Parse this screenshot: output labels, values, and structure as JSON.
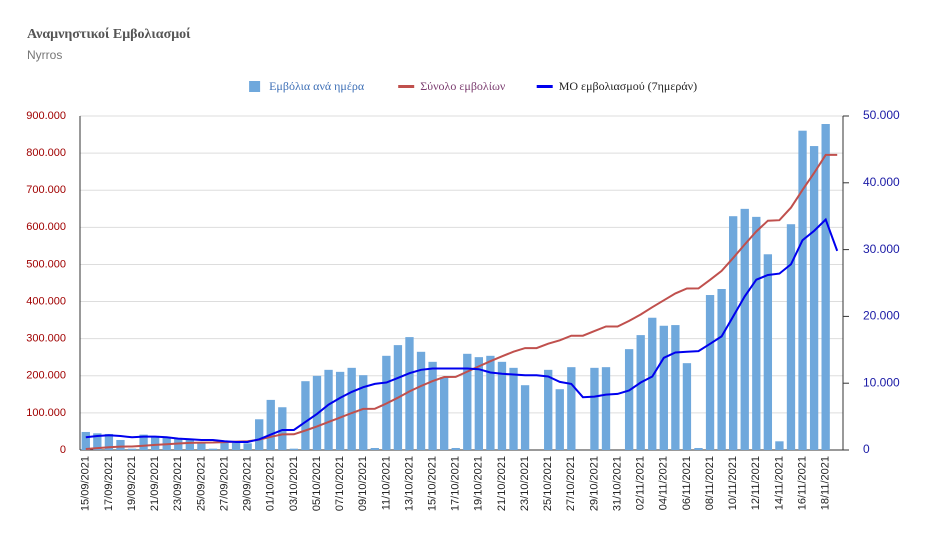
{
  "chart_data": {
    "type": "bar_line",
    "title": "Αναμνηστικοί Εμβολιασμοί",
    "subtitle": "Nyrros",
    "categories": [
      "15/09/2021",
      null,
      "17/09/2021",
      null,
      "19/09/2021",
      null,
      "21/09/2021",
      null,
      "23/09/2021",
      null,
      "25/09/2021",
      null,
      "27/09/2021",
      null,
      "29/09/2021",
      null,
      "01/10/2021",
      null,
      "03/10/2021",
      null,
      "05/10/2021",
      null,
      "07/10/2021",
      null,
      "09/10/2021",
      null,
      "11/10/2021",
      null,
      "13/10/2021",
      null,
      "15/10/2021",
      null,
      "17/10/2021",
      null,
      "19/10/2021",
      null,
      "21/10/2021",
      null,
      "23/10/2021",
      null,
      "25/10/2021",
      null,
      "27/10/2021",
      null,
      "29/10/2021",
      null,
      "31/10/2021",
      null,
      "02/11/2021",
      null,
      "04/11/2021",
      null,
      "06/11/2021",
      null,
      "08/11/2021",
      null,
      "10/11/2021",
      null,
      "12/11/2021",
      null,
      "14/11/2021",
      null,
      "16/11/2021",
      null,
      "18/11/2021",
      null
    ],
    "series": [
      {
        "name": "Εμβόλια ανά ημέρα",
        "kind": "bar",
        "axis": "y2",
        "color": "#6fa8dc",
        "values": [
          2700,
          2500,
          2400,
          1500,
          200,
          2300,
          2100,
          1900,
          1800,
          1600,
          1000,
          200,
          1200,
          1100,
          1000,
          4600,
          7500,
          6400,
          200,
          10300,
          11100,
          12000,
          11700,
          12300,
          11200,
          300,
          14100,
          15700,
          16900,
          14700,
          13200,
          10900,
          300,
          14400,
          13900,
          14100,
          13200,
          12300,
          9700,
          0,
          12000,
          9100,
          12400,
          0,
          12300,
          12400,
          0,
          15100,
          17200,
          19800,
          18600,
          18700,
          13000,
          300,
          23200,
          24100,
          35000,
          36100,
          34900,
          29300,
          1300,
          33800,
          47800,
          45500,
          48800,
          0
        ]
      },
      {
        "name": "Σύνολο εμβολίων",
        "kind": "line",
        "color": "#c0504d",
        "values": [
          2700,
          5200,
          7600,
          9100,
          9300,
          11600,
          13700,
          15600,
          17400,
          19000,
          20000,
          20200,
          21400,
          22500,
          23500,
          28100,
          35600,
          42000,
          42200,
          52500,
          63600,
          75600,
          87300,
          99600,
          110800,
          111100,
          125200,
          140900,
          157800,
          172500,
          185700,
          196600,
          196900,
          211300,
          225200,
          239300,
          252500,
          264800,
          274500,
          274500,
          286500,
          295600,
          308000,
          308000,
          320300,
          332700,
          332700,
          347800,
          365000,
          384800,
          403400,
          422100,
          435100,
          435400,
          458600,
          482700,
          517700,
          553800,
          588700,
          618000,
          619300,
          653100,
          700900,
          746400,
          795200,
          795200
        ]
      },
      {
        "name": "ΜΟ εμβολιασμού (7ημεράν)",
        "kind": "line",
        "axis": "y2",
        "color": "#0000ee",
        "values": [
          1900,
          2100,
          2200,
          2100,
          1900,
          2000,
          2000,
          1900,
          1700,
          1600,
          1500,
          1500,
          1300,
          1200,
          1200,
          1600,
          2300,
          3000,
          3000,
          4200,
          5400,
          6800,
          7800,
          8700,
          9400,
          9900,
          10100,
          10800,
          11500,
          12000,
          12200,
          12200,
          12200,
          12200,
          12100,
          11600,
          11400,
          11300,
          11200,
          11200,
          11000,
          10200,
          9900,
          7900,
          8000,
          8300,
          8400,
          8900,
          10100,
          11000,
          13800,
          14600,
          14700,
          14800,
          15900,
          17000,
          20000,
          23000,
          25500,
          26200,
          26400,
          27800,
          31400,
          32800,
          34500,
          29800
        ]
      }
    ],
    "ylim": [
      0,
      900000
    ],
    "yticks": [
      0,
      {
        "value": 100000,
        "label": "100.000"
      },
      {
        "value": 200000,
        "label": "200.000"
      },
      {
        "value": 300000,
        "label": "300.000"
      },
      {
        "value": 400000,
        "label": "400.000"
      },
      {
        "value": 500000,
        "label": "500.000"
      },
      {
        "value": 600000,
        "label": "600.000"
      },
      {
        "value": 700000,
        "label": "700.000"
      },
      {
        "value": 800000,
        "label": "800.000"
      },
      {
        "value": 900000,
        "label": "900.000"
      }
    ],
    "y2lim": [
      0,
      50000
    ],
    "y2ticks": [
      0,
      {
        "value": 10000,
        "label": "10.000"
      },
      {
        "value": 20000,
        "label": "20.000"
      },
      {
        "value": 30000,
        "label": "30.000"
      },
      {
        "value": 40000,
        "label": "40.000"
      },
      {
        "value": 50000,
        "label": "50.000"
      }
    ],
    "grid": true,
    "legend": "top"
  }
}
